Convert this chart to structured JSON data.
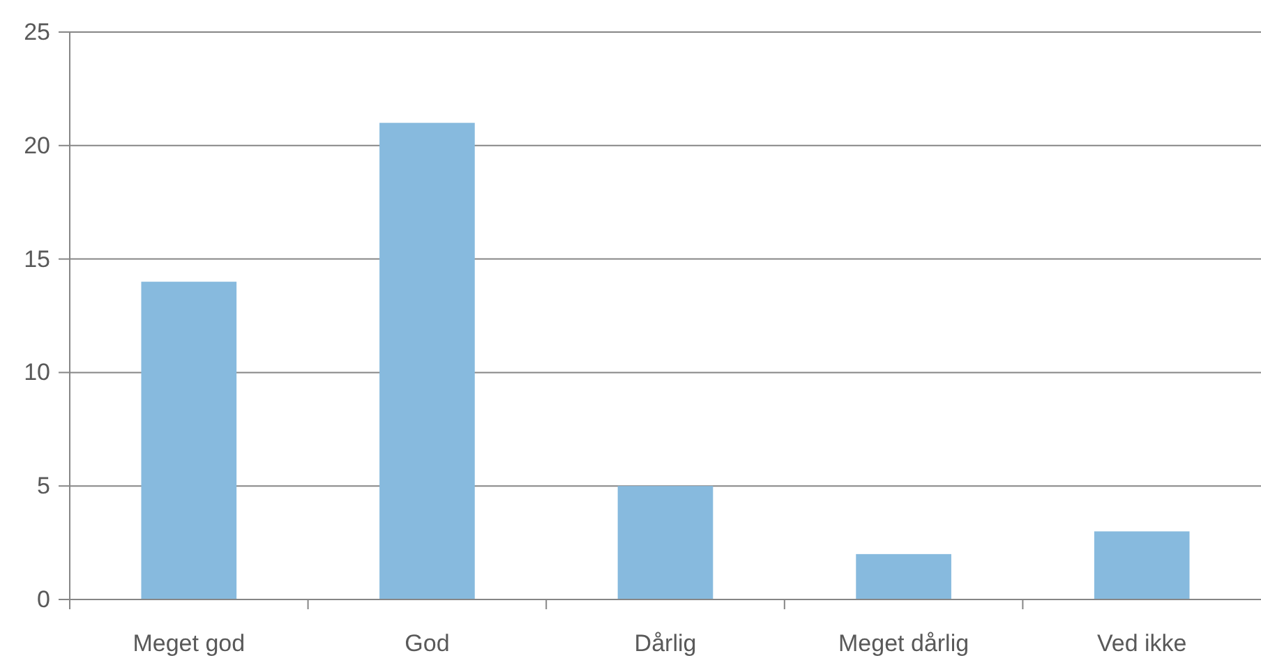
{
  "chart_data": {
    "type": "bar",
    "categories": [
      "Meget god",
      "God",
      "Dårlig",
      "Meget dårlig",
      "Ved ikke"
    ],
    "values": [
      14,
      21,
      5,
      2,
      3
    ],
    "color": "#87bade",
    "ylim": [
      0,
      25
    ],
    "yticks": [
      0,
      5,
      10,
      15,
      20,
      25
    ],
    "grid": "y"
  }
}
